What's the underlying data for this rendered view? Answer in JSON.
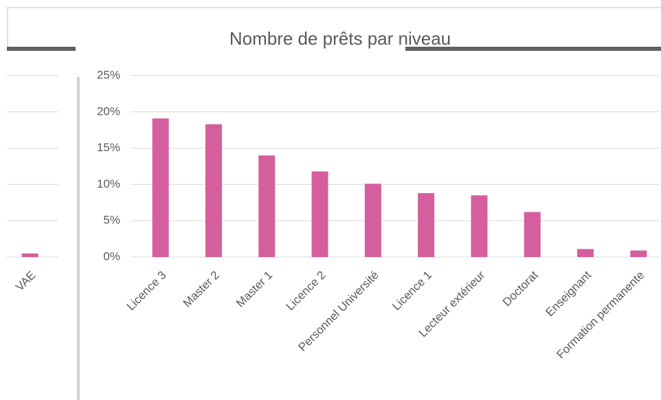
{
  "chart_data": [
    {
      "type": "bar",
      "title": "Nombre de prêts par niveau",
      "categories": [
        "Licence 3",
        "Master 2",
        "Master 1",
        "Licence 2",
        "Personnel Université",
        "Licence 1",
        "Lecteur extérieur",
        "Doctorat",
        "Enseignant",
        "Formation permanente"
      ],
      "values": [
        19.1,
        18.3,
        14.0,
        11.8,
        10.1,
        8.8,
        8.5,
        6.2,
        1.1,
        0.9
      ],
      "color": "#d55e9d",
      "ylim": [
        0,
        25
      ],
      "yticks": [
        {
          "value": 0,
          "label": "0%"
        },
        {
          "value": 5,
          "label": "5%"
        },
        {
          "value": 10,
          "label": "10%"
        },
        {
          "value": 15,
          "label": "15%"
        },
        {
          "value": 20,
          "label": "20%"
        },
        {
          "value": 25,
          "label": "25%"
        }
      ],
      "grid": true
    },
    {
      "type": "bar",
      "categories": [
        "VAE"
      ],
      "values": [
        0.5
      ],
      "color": "#d55e9d",
      "ylim": [
        0,
        25
      ],
      "yticks": [
        0,
        5,
        10,
        15,
        20,
        25
      ],
      "grid": true
    }
  ]
}
